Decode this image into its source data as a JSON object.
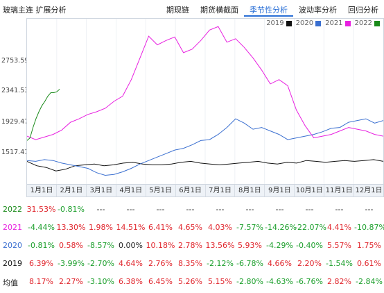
{
  "header": {
    "title": "玻璃主连  扩展分析",
    "tabs": [
      "期现链",
      "期货横截面",
      "季节性分析",
      "波动率分析",
      "回归分析"
    ],
    "active_tab": 2
  },
  "colors": {
    "2019": "#111111",
    "2020": "#3a6fd0",
    "2021": "#e81fe0",
    "2022": "#1a8a1a",
    "accent": "#2a6fd6",
    "positive": "#e0242b",
    "negative": "#1a9e2a"
  },
  "chart_data": {
    "type": "line",
    "x_labels": [
      "1月1日",
      "2月1日",
      "3月1日",
      "4月1日",
      "5月1日",
      "6月1日",
      "7月1日",
      "8月1日",
      "9月1日",
      "10月1日",
      "11月1日",
      "12月1日"
    ],
    "y_ticks": [
      "2753.59",
      "2341.53",
      "1929.47",
      "1517.41"
    ],
    "ylim": [
      1250,
      3150
    ],
    "legend_position": "top-right",
    "series": [
      {
        "name": "2019",
        "values": [
          1510,
          1460,
          1440,
          1400,
          1420,
          1460,
          1470,
          1480,
          1460,
          1470,
          1490,
          1500,
          1480,
          1470,
          1470,
          1480,
          1500,
          1510,
          1490,
          1480,
          1470,
          1480,
          1490,
          1500,
          1510,
          1490,
          1480,
          1500,
          1490,
          1520,
          1510,
          1500,
          1510,
          1520,
          1510,
          1520,
          1530,
          1510
        ]
      },
      {
        "name": "2020",
        "values": [
          1520,
          1510,
          1530,
          1520,
          1490,
          1470,
          1450,
          1430,
          1380,
          1350,
          1360,
          1390,
          1430,
          1480,
          1520,
          1560,
          1600,
          1640,
          1660,
          1700,
          1750,
          1760,
          1820,
          1900,
          2000,
          1950,
          1880,
          1900,
          1860,
          1820,
          1760,
          1780,
          1800,
          1820,
          1850,
          1890,
          1900,
          1960,
          1980,
          2000,
          1950,
          1980
        ]
      },
      {
        "name": "2021",
        "values": [
          1800,
          1760,
          1790,
          1820,
          1870,
          1960,
          2000,
          2050,
          2080,
          2120,
          2200,
          2260,
          2450,
          2700,
          2950,
          2850,
          2900,
          2940,
          2760,
          2800,
          2900,
          3020,
          3060,
          2880,
          2920,
          2820,
          2700,
          2560,
          2400,
          2450,
          2380,
          2100,
          1920,
          1780,
          1800,
          1820,
          1860,
          1900,
          1880,
          1860,
          1820,
          1800
        ]
      },
      {
        "name": "2022",
        "values": [
          1750,
          1780,
          1900,
          2000,
          2080,
          2150,
          2200,
          2260,
          2300,
          2300,
          2310,
          2340
        ]
      }
    ]
  },
  "stats_table": {
    "rows": [
      {
        "label": "2022",
        "values": [
          "31.53%",
          "-0.81%",
          "---",
          "---",
          "---",
          "---",
          "---",
          "---",
          "---",
          "---",
          "---",
          "---"
        ]
      },
      {
        "label": "2021",
        "values": [
          "-4.44%",
          "13.30%",
          "1.98%",
          "14.51%",
          "6.41%",
          "4.65%",
          "4.03%",
          "-7.57%",
          "-14.26%",
          "-22.07%",
          "4.41%",
          "-10.87%"
        ]
      },
      {
        "label": "2020",
        "values": [
          "-0.81%",
          "0.58%",
          "-8.57%",
          "0.00%",
          "10.18%",
          "2.78%",
          "13.56%",
          "5.93%",
          "-4.29%",
          "-0.40%",
          "5.57%",
          "1.75%"
        ]
      },
      {
        "label": "2019",
        "values": [
          "6.39%",
          "-3.99%",
          "-2.70%",
          "4.64%",
          "2.76%",
          "8.35%",
          "-2.12%",
          "-6.78%",
          "4.66%",
          "2.20%",
          "-1.54%",
          "0.61%"
        ]
      },
      {
        "label": "均值",
        "values": [
          "8.17%",
          "2.27%",
          "-3.10%",
          "6.38%",
          "6.45%",
          "5.26%",
          "5.15%",
          "-2.80%",
          "-4.63%",
          "-6.76%",
          "2.82%",
          "-2.84%"
        ]
      }
    ]
  }
}
